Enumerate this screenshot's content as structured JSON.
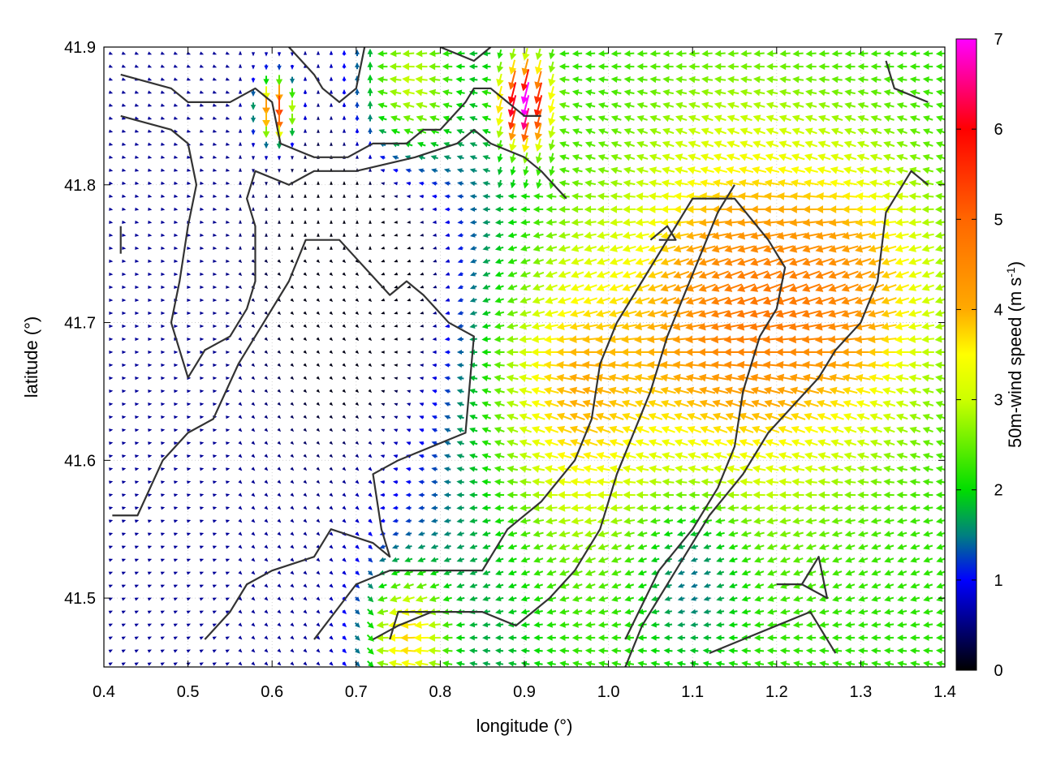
{
  "chart_data": {
    "type": "vector-field",
    "xlabel": "longitude (°)",
    "ylabel": "latitude (°)",
    "colorbar_label": "50m-wind speed (m s",
    "colorbar_label_sup": "-1",
    "colorbar_label_close": ")",
    "xlim": [
      0.4,
      1.4
    ],
    "ylim": [
      41.45,
      41.9
    ],
    "xticks": [
      "0.4",
      "0.5",
      "0.6",
      "0.7",
      "0.8",
      "0.9",
      "1.0",
      "1.1",
      "1.2",
      "1.3",
      "1.4"
    ],
    "xtick_values": [
      0.4,
      0.5,
      0.6,
      0.7,
      0.8,
      0.9,
      1.0,
      1.1,
      1.2,
      1.3,
      1.4
    ],
    "yticks": [
      "41.5",
      "41.6",
      "41.7",
      "41.8",
      "41.9"
    ],
    "ytick_values": [
      41.5,
      41.6,
      41.7,
      41.8,
      41.9
    ],
    "colorbar_range": [
      0,
      7
    ],
    "colorbar_ticks": [
      "0",
      "1",
      "2",
      "3",
      "4",
      "5",
      "6",
      "7"
    ],
    "colorbar_tick_values": [
      0,
      1,
      2,
      3,
      4,
      5,
      6,
      7
    ],
    "colormap": [
      {
        "v": 0.0,
        "color": "#000000"
      },
      {
        "v": 1.0,
        "color": "#0000ff"
      },
      {
        "v": 1.5,
        "color": "#008080"
      },
      {
        "v": 2.0,
        "color": "#00dd00"
      },
      {
        "v": 3.0,
        "color": "#ccff00"
      },
      {
        "v": 3.5,
        "color": "#ffff00"
      },
      {
        "v": 4.0,
        "color": "#ffaa00"
      },
      {
        "v": 5.0,
        "color": "#ff6600"
      },
      {
        "v": 6.0,
        "color": "#ff0000"
      },
      {
        "v": 7.0,
        "color": "#ff00ff"
      }
    ],
    "grid": "dotted",
    "outline_color": "#333333",
    "outlines": [
      [
        [
          0.42,
          41.88
        ],
        [
          0.48,
          41.87
        ],
        [
          0.5,
          41.86
        ],
        [
          0.55,
          41.86
        ],
        [
          0.58,
          41.87
        ],
        [
          0.6,
          41.86
        ],
        [
          0.61,
          41.83
        ],
        [
          0.65,
          41.82
        ],
        [
          0.69,
          41.82
        ],
        [
          0.72,
          41.83
        ],
        [
          0.74,
          41.83
        ],
        [
          0.76,
          41.83
        ],
        [
          0.78,
          41.84
        ],
        [
          0.8,
          41.84
        ],
        [
          0.83,
          41.86
        ],
        [
          0.84,
          41.87
        ],
        [
          0.86,
          41.87
        ],
        [
          0.88,
          41.86
        ],
        [
          0.9,
          41.85
        ],
        [
          0.92,
          41.85
        ]
      ],
      [
        [
          0.62,
          41.9
        ],
        [
          0.65,
          41.88
        ],
        [
          0.66,
          41.87
        ],
        [
          0.68,
          41.86
        ],
        [
          0.7,
          41.87
        ],
        [
          0.71,
          41.9
        ]
      ],
      [
        [
          0.8,
          41.9
        ],
        [
          0.84,
          41.89
        ],
        [
          0.86,
          41.9
        ]
      ],
      [
        [
          0.42,
          41.85
        ],
        [
          0.48,
          41.84
        ],
        [
          0.5,
          41.83
        ],
        [
          0.51,
          41.8
        ],
        [
          0.5,
          41.77
        ],
        [
          0.49,
          41.73
        ],
        [
          0.48,
          41.7
        ],
        [
          0.5,
          41.66
        ],
        [
          0.52,
          41.68
        ],
        [
          0.55,
          41.69
        ],
        [
          0.57,
          41.71
        ],
        [
          0.58,
          41.73
        ],
        [
          0.58,
          41.77
        ],
        [
          0.57,
          41.79
        ],
        [
          0.58,
          41.81
        ],
        [
          0.62,
          41.8
        ],
        [
          0.65,
          41.81
        ],
        [
          0.7,
          41.81
        ],
        [
          0.77,
          41.82
        ],
        [
          0.82,
          41.83
        ],
        [
          0.84,
          41.84
        ],
        [
          0.86,
          41.83
        ],
        [
          0.9,
          41.82
        ],
        [
          0.92,
          41.81
        ],
        [
          0.95,
          41.79
        ]
      ],
      [
        [
          0.41,
          41.56
        ],
        [
          0.44,
          41.56
        ],
        [
          0.47,
          41.6
        ],
        [
          0.5,
          41.62
        ],
        [
          0.53,
          41.63
        ],
        [
          0.56,
          41.67
        ],
        [
          0.62,
          41.73
        ],
        [
          0.64,
          41.76
        ],
        [
          0.68,
          41.76
        ],
        [
          0.74,
          41.72
        ],
        [
          0.76,
          41.73
        ],
        [
          0.78,
          41.72
        ],
        [
          0.81,
          41.7
        ],
        [
          0.84,
          41.69
        ],
        [
          0.83,
          41.62
        ],
        [
          0.79,
          41.61
        ],
        [
          0.75,
          41.6
        ],
        [
          0.72,
          41.59
        ],
        [
          0.73,
          41.55
        ],
        [
          0.74,
          41.53
        ],
        [
          0.72,
          41.54
        ],
        [
          0.67,
          41.55
        ],
        [
          0.65,
          41.53
        ],
        [
          0.6,
          41.52
        ],
        [
          0.57,
          41.51
        ],
        [
          0.55,
          41.49
        ],
        [
          0.52,
          41.47
        ]
      ],
      [
        [
          0.65,
          41.47
        ],
        [
          0.7,
          41.51
        ],
        [
          0.74,
          41.52
        ],
        [
          0.78,
          41.52
        ],
        [
          0.85,
          41.52
        ],
        [
          0.88,
          41.55
        ],
        [
          0.92,
          41.57
        ],
        [
          0.96,
          41.6
        ],
        [
          0.98,
          41.63
        ],
        [
          0.99,
          41.67
        ],
        [
          1.01,
          41.7
        ],
        [
          1.04,
          41.73
        ],
        [
          1.07,
          41.76
        ],
        [
          1.1,
          41.79
        ],
        [
          1.15,
          41.79
        ],
        [
          1.19,
          41.76
        ],
        [
          1.21,
          41.74
        ],
        [
          1.2,
          41.71
        ],
        [
          1.18,
          41.69
        ],
        [
          1.16,
          41.65
        ],
        [
          1.15,
          41.61
        ],
        [
          1.13,
          41.58
        ],
        [
          1.1,
          41.55
        ],
        [
          1.06,
          41.52
        ],
        [
          1.02,
          41.47
        ]
      ],
      [
        [
          0.72,
          41.47
        ],
        [
          0.75,
          41.48
        ],
        [
          0.79,
          41.49
        ],
        [
          0.85,
          41.49
        ],
        [
          0.89,
          41.48
        ],
        [
          0.93,
          41.5
        ],
        [
          0.96,
          41.52
        ],
        [
          0.99,
          41.55
        ],
        [
          1.01,
          41.59
        ],
        [
          1.03,
          41.62
        ],
        [
          1.05,
          41.65
        ],
        [
          1.07,
          41.69
        ],
        [
          1.09,
          41.72
        ],
        [
          1.11,
          41.75
        ],
        [
          1.13,
          41.78
        ],
        [
          1.15,
          41.8
        ]
      ],
      [
        [
          0.74,
          41.47
        ],
        [
          0.75,
          41.49
        ],
        [
          0.79,
          41.49
        ]
      ],
      [
        [
          1.02,
          41.45
        ],
        [
          1.04,
          41.48
        ],
        [
          1.08,
          41.52
        ],
        [
          1.12,
          41.56
        ],
        [
          1.16,
          41.59
        ],
        [
          1.19,
          41.62
        ],
        [
          1.22,
          41.64
        ],
        [
          1.25,
          41.66
        ],
        [
          1.27,
          41.68
        ],
        [
          1.3,
          41.7
        ],
        [
          1.32,
          41.73
        ],
        [
          1.33,
          41.78
        ],
        [
          1.36,
          41.81
        ],
        [
          1.38,
          41.8
        ]
      ],
      [
        [
          1.12,
          41.46
        ],
        [
          1.16,
          41.47
        ],
        [
          1.2,
          41.48
        ],
        [
          1.24,
          41.49
        ],
        [
          1.27,
          41.46
        ]
      ],
      [
        [
          1.2,
          41.51
        ],
        [
          1.23,
          41.51
        ],
        [
          1.25,
          41.53
        ],
        [
          1.26,
          41.5
        ],
        [
          1.23,
          41.51
        ]
      ],
      [
        [
          1.33,
          41.89
        ],
        [
          1.34,
          41.87
        ],
        [
          1.38,
          41.86
        ]
      ],
      [
        [
          1.05,
          41.76
        ],
        [
          1.07,
          41.77
        ],
        [
          1.08,
          41.76
        ],
        [
          1.06,
          41.76
        ]
      ],
      [
        [
          0.42,
          41.77
        ],
        [
          0.42,
          41.76
        ],
        [
          0.42,
          41.75
        ]
      ]
    ]
  }
}
